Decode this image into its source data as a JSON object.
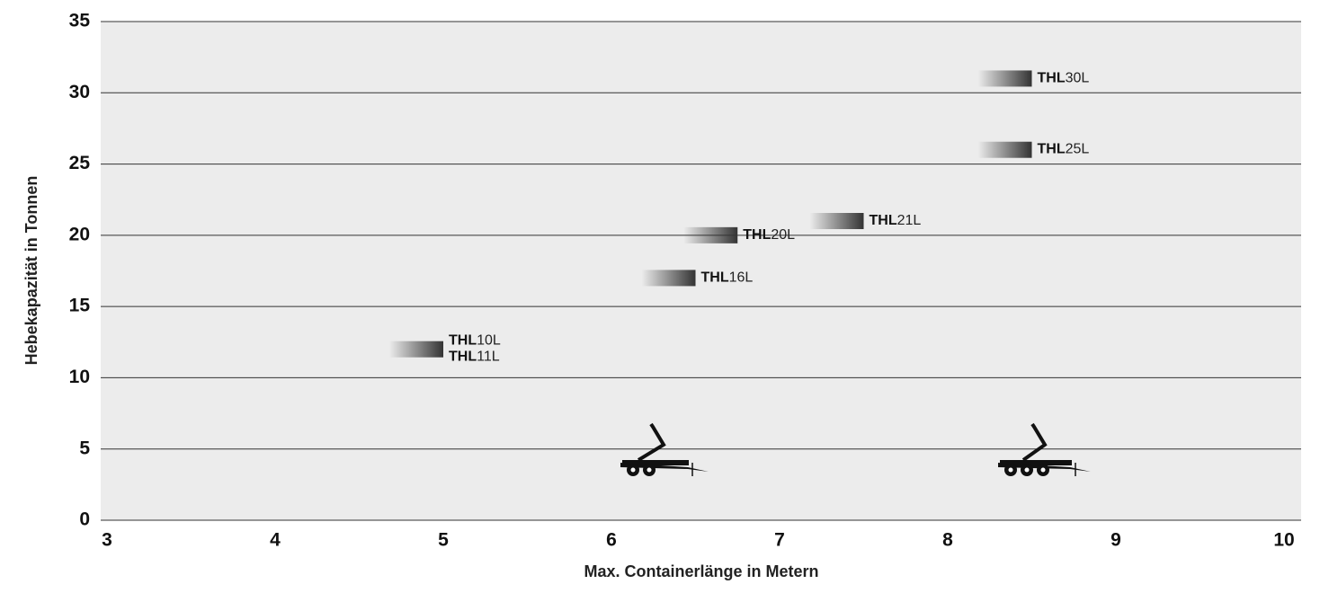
{
  "chart_data": {
    "type": "scatter",
    "x_label": "Max. Containerlänge in Metern",
    "y_label": "Hebekapazität in Tonnen",
    "xlim": [
      3,
      10
    ],
    "xticks": [
      3,
      4,
      5,
      6,
      7,
      8,
      9,
      10
    ],
    "ylim": [
      0,
      35
    ],
    "yticks": [
      0,
      5,
      10,
      15,
      20,
      25,
      30,
      35
    ],
    "grid": true,
    "color": "#333333",
    "points": [
      {
        "x": 5,
        "y": 12,
        "labels": [
          {
            "bold": "THL",
            "text": "10L"
          },
          {
            "bold": "THL",
            "text": "11L"
          }
        ]
      },
      {
        "x": 6.5,
        "y": 17,
        "labels": [
          {
            "bold": "THL",
            "text": "16L"
          }
        ]
      },
      {
        "x": 6.75,
        "y": 20,
        "labels": [
          {
            "bold": "THL",
            "text": "20L"
          }
        ]
      },
      {
        "x": 7.5,
        "y": 21,
        "labels": [
          {
            "bold": "THL",
            "text": "21L"
          }
        ]
      },
      {
        "x": 8.5,
        "y": 26,
        "labels": [
          {
            "bold": "THL",
            "text": "25L"
          }
        ]
      },
      {
        "x": 8.5,
        "y": 31,
        "labels": [
          {
            "bold": "THL",
            "text": "30L"
          }
        ]
      }
    ]
  }
}
